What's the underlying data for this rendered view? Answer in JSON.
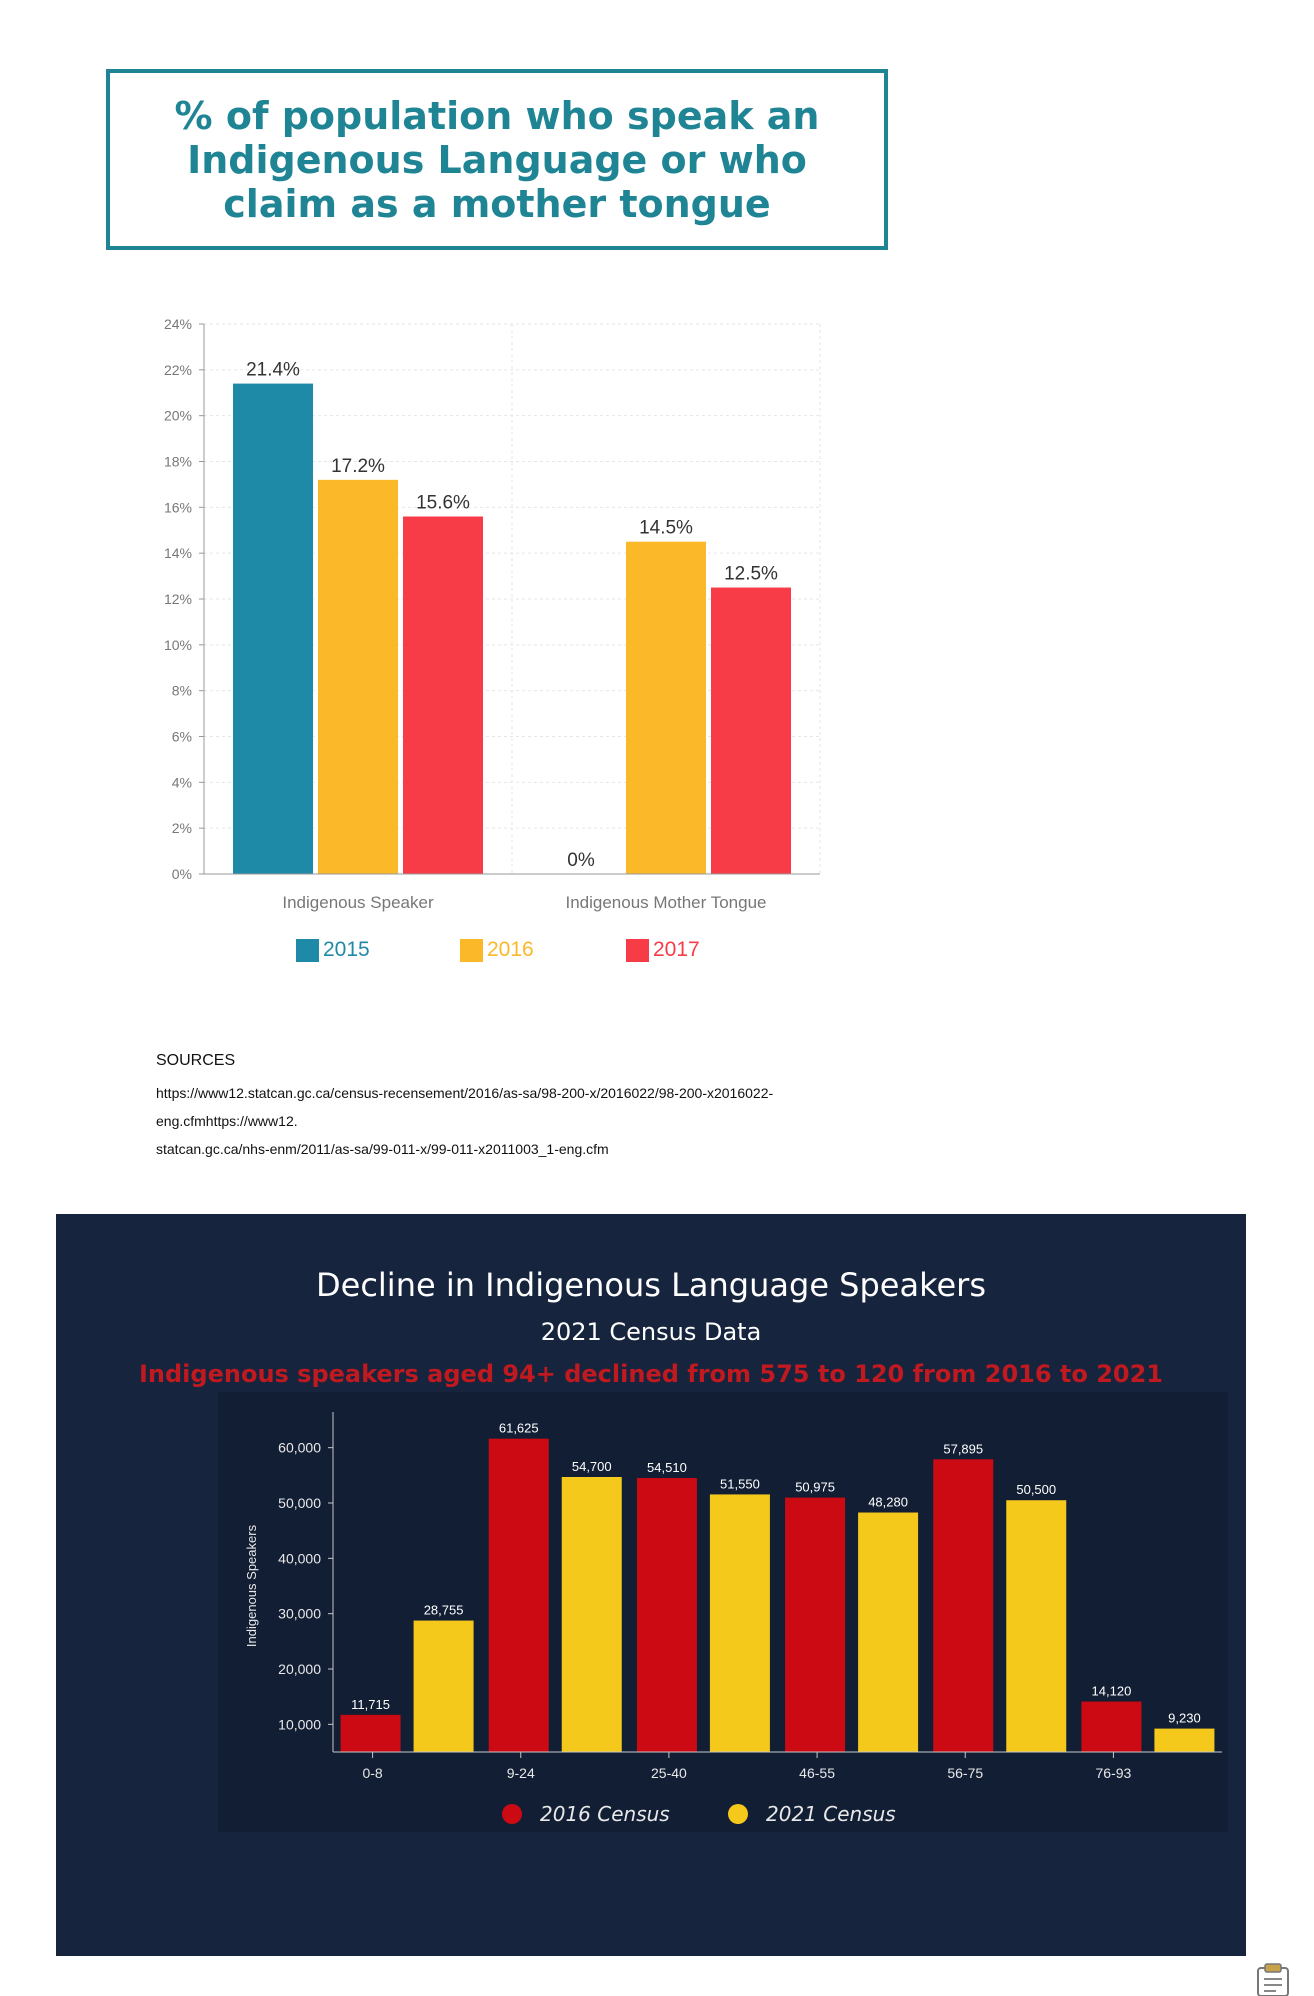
{
  "chart_data": [
    {
      "type": "bar",
      "title": "% of population who speak an\nIndigenous Language or who\nclaim as a mother tongue",
      "categories": [
        "Indigenous Speaker",
        "Indigenous Mother Tongue"
      ],
      "series": [
        {
          "name": "2015",
          "values": [
            21.4,
            0
          ],
          "labels": [
            "21.4%",
            "0%"
          ],
          "color": "#1f8aa8"
        },
        {
          "name": "2016",
          "values": [
            17.2,
            14.5
          ],
          "labels": [
            "17.2%",
            "14.5%"
          ],
          "color": "#fbb829"
        },
        {
          "name": "2017",
          "values": [
            15.6,
            12.5
          ],
          "labels": [
            "15.6%",
            "12.5%"
          ],
          "color": "#f73c48"
        }
      ],
      "ylim": [
        0,
        24
      ],
      "yticks": [
        "0%",
        "2%",
        "4%",
        "6%",
        "8%",
        "10%",
        "12%",
        "14%",
        "16%",
        "18%",
        "20%",
        "22%",
        "24%"
      ],
      "grid": true,
      "legend": "bottom"
    },
    {
      "type": "bar",
      "title": "Decline in Indigenous Language Speakers",
      "subtitle": "2021 Census Data",
      "annotation": "Indigenous speakers aged 94+ declined from 575 to 120 from 2016 to 2021",
      "ylabel": "Indigenous Speakers",
      "categories": [
        "0-8",
        "9-24",
        "25-40",
        "46-55",
        "56-75",
        "76-93"
      ],
      "series": [
        {
          "name": "2016 Census",
          "values": [
            11715,
            61625,
            54510,
            50975,
            57895,
            14120
          ],
          "labels": [
            "11,715",
            "61,625",
            "54,510",
            "50,975",
            "57,895",
            "14,120"
          ],
          "color": "#cc0a14"
        },
        {
          "name": "2021 Census",
          "values": [
            28755,
            54700,
            51550,
            48280,
            50500,
            9230
          ],
          "labels": [
            "28,755",
            "54,700",
            "51,550",
            "48,280",
            "50,500",
            "9,230"
          ],
          "color": "#f5c81c"
        }
      ],
      "ylim": [
        5000,
        65000
      ],
      "yticks": [
        "10,000",
        "20,000",
        "30,000",
        "40,000",
        "50,000",
        "60,000"
      ],
      "grid": false,
      "legend": "bottom"
    }
  ],
  "sources": {
    "heading": "SOURCES",
    "lines": [
      "https://www12.statcan.gc.ca/census-recensement/2016/as-sa/98-200-x/2016022/98-200-x2016022-",
      "eng.cfmhttps://www12.",
      "statcan.gc.ca/nhs-enm/2011/as-sa/99-011-x/99-011-x2011003_1-eng.cfm"
    ]
  },
  "colors": {
    "title_teal": "#1f8494",
    "panel_bg": "#16243d",
    "annotation_red": "#c0191f"
  },
  "icons": {
    "bottom_right": "clipboard-icon"
  }
}
